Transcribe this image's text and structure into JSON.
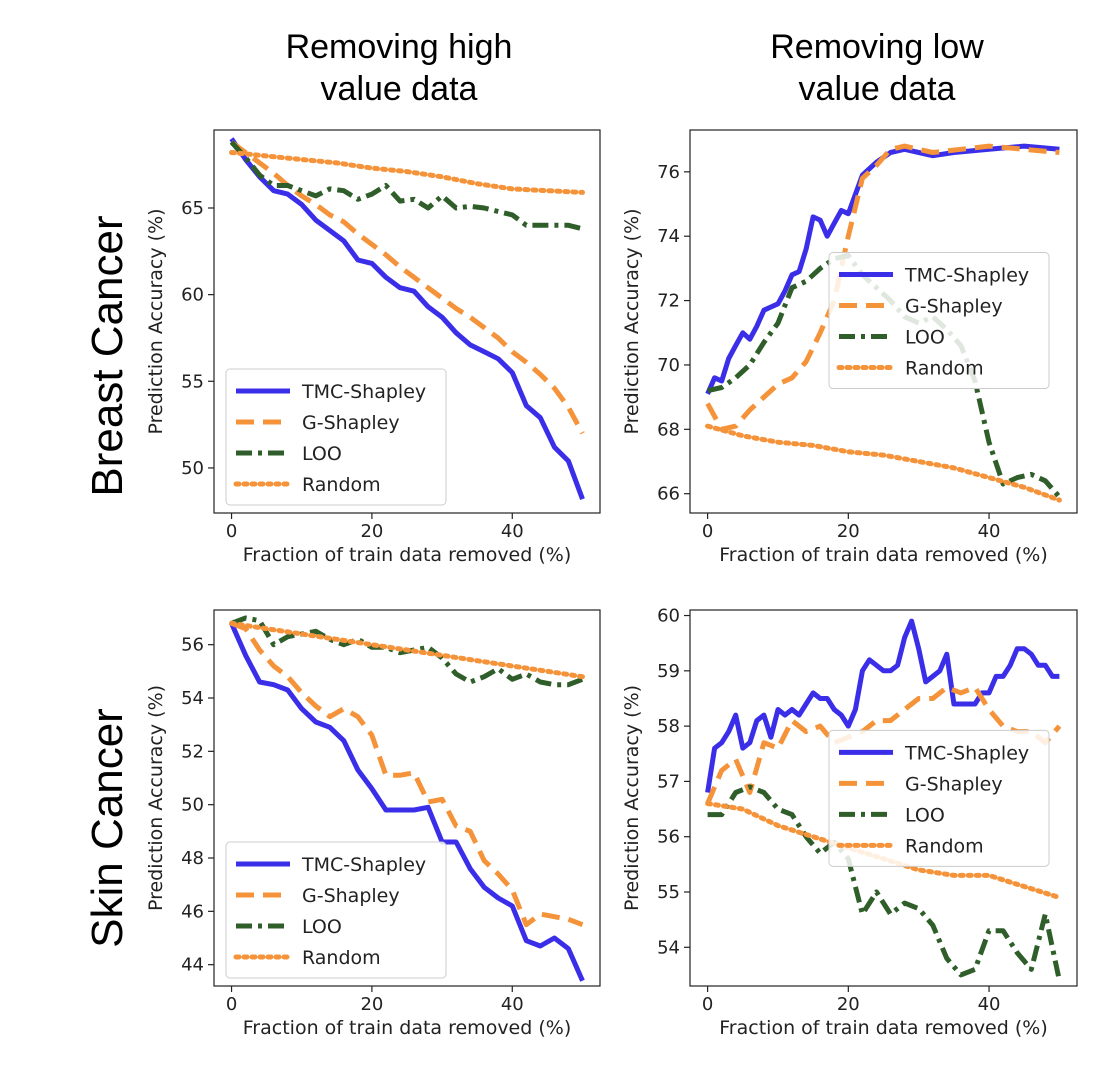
{
  "figure": {
    "column_titles": [
      [
        "Removing high",
        "value data"
      ],
      [
        "Removing low",
        "value data"
      ]
    ],
    "row_titles": [
      "Breast Cancer",
      "Skin Cancer"
    ]
  },
  "chart_data": [
    {
      "type": "line",
      "id": "bc-high",
      "xlabel": "Fraction of train data removed (%)",
      "ylabel": "Prediction Accuracy (%)",
      "xlim": [
        -2.5,
        52.5
      ],
      "ylim": [
        47.4,
        69.5
      ],
      "xticks": [
        0,
        20,
        40
      ],
      "yticks": [
        50,
        55,
        60,
        65
      ],
      "legend": "lower-left",
      "series": [
        {
          "name": "TMC-Shapley",
          "color": "#3a2ee8",
          "style": "solid",
          "x": [
            0,
            2,
            4,
            6,
            8,
            10,
            12,
            14,
            16,
            18,
            20,
            22,
            24,
            26,
            28,
            30,
            32,
            34,
            36,
            38,
            40,
            42,
            44,
            46,
            48,
            50
          ],
          "y": [
            69.0,
            67.8,
            66.8,
            66.0,
            65.8,
            65.2,
            64.3,
            63.7,
            63.1,
            62.0,
            61.8,
            61.0,
            60.4,
            60.2,
            59.3,
            58.7,
            57.8,
            57.1,
            56.7,
            56.3,
            55.5,
            53.6,
            52.9,
            51.2,
            50.4,
            48.2
          ]
        },
        {
          "name": "G-Shapley",
          "color": "#f5933a",
          "style": "dashed",
          "x": [
            0,
            2,
            4,
            6,
            8,
            10,
            12,
            14,
            16,
            18,
            20,
            22,
            24,
            26,
            28,
            30,
            32,
            34,
            36,
            38,
            40,
            42,
            44,
            46,
            48,
            50
          ],
          "y": [
            68.8,
            68.2,
            67.6,
            67.0,
            66.3,
            65.7,
            65.2,
            64.6,
            64.2,
            63.5,
            62.9,
            62.3,
            61.6,
            61.0,
            60.4,
            59.8,
            59.2,
            58.7,
            58.1,
            57.5,
            56.7,
            56.1,
            55.4,
            54.6,
            53.5,
            52.0
          ]
        },
        {
          "name": "LOO",
          "color": "#2f5e2a",
          "style": "dashdot",
          "x": [
            0,
            2,
            4,
            6,
            8,
            10,
            12,
            14,
            16,
            18,
            20,
            22,
            24,
            26,
            28,
            30,
            32,
            34,
            36,
            38,
            40,
            42,
            44,
            46,
            48,
            50
          ],
          "y": [
            68.8,
            67.9,
            66.9,
            66.3,
            66.3,
            66.0,
            65.7,
            66.1,
            66.0,
            65.5,
            65.8,
            66.3,
            65.4,
            65.5,
            65.0,
            65.7,
            65.0,
            65.1,
            65.0,
            64.8,
            64.6,
            64.0,
            64.0,
            64.0,
            64.0,
            63.8
          ]
        },
        {
          "name": "Random",
          "color": "#f5933a",
          "style": "dotted",
          "x": [
            0,
            5,
            10,
            15,
            20,
            25,
            30,
            35,
            40,
            45,
            50
          ],
          "y": [
            68.2,
            68.0,
            67.8,
            67.6,
            67.3,
            67.1,
            66.8,
            66.4,
            66.1,
            66.0,
            65.9
          ]
        }
      ]
    },
    {
      "type": "line",
      "id": "bc-low",
      "xlabel": "Fraction of train data removed (%)",
      "ylabel": "Prediction Accuracy (%)",
      "xlim": [
        -2.5,
        52.5
      ],
      "ylim": [
        65.4,
        77.3
      ],
      "xticks": [
        0,
        20,
        40
      ],
      "yticks": [
        66,
        68,
        70,
        72,
        74,
        76
      ],
      "legend": "center-right",
      "series": [
        {
          "name": "TMC-Shapley",
          "color": "#3a2ee8",
          "style": "solid",
          "x": [
            0,
            1,
            2,
            3,
            4,
            5,
            6,
            7,
            8,
            9,
            10,
            11,
            12,
            13,
            14,
            15,
            16,
            17,
            18,
            19,
            20,
            21,
            22,
            24,
            26,
            28,
            30,
            32,
            35,
            40,
            45,
            50
          ],
          "y": [
            69.1,
            69.6,
            69.5,
            70.2,
            70.6,
            71.0,
            70.8,
            71.2,
            71.7,
            71.8,
            71.9,
            72.3,
            72.8,
            72.9,
            73.6,
            74.6,
            74.5,
            74.0,
            74.4,
            74.8,
            74.7,
            75.3,
            75.9,
            76.3,
            76.6,
            76.7,
            76.6,
            76.5,
            76.6,
            76.7,
            76.8,
            76.7
          ]
        },
        {
          "name": "G-Shapley",
          "color": "#f5933a",
          "style": "dashed",
          "x": [
            0,
            2,
            4,
            6,
            8,
            10,
            12,
            14,
            16,
            18,
            20,
            22,
            24,
            26,
            28,
            32,
            36,
            40,
            45,
            50
          ],
          "y": [
            68.8,
            68.0,
            68.1,
            68.6,
            69.0,
            69.4,
            69.6,
            70.1,
            71.0,
            72.0,
            74.0,
            75.8,
            76.2,
            76.7,
            76.8,
            76.6,
            76.7,
            76.8,
            76.7,
            76.6
          ]
        },
        {
          "name": "LOO",
          "color": "#2f5e2a",
          "style": "dashdot",
          "x": [
            0,
            2,
            4,
            6,
            8,
            10,
            12,
            14,
            16,
            18,
            20,
            22,
            24,
            26,
            28,
            30,
            32,
            34,
            36,
            38,
            40,
            42,
            44,
            46,
            48,
            50
          ],
          "y": [
            69.2,
            69.3,
            69.6,
            70.0,
            70.7,
            71.3,
            72.4,
            72.6,
            73.0,
            73.3,
            73.4,
            72.8,
            72.4,
            72.0,
            71.5,
            71.3,
            71.5,
            71.1,
            70.6,
            69.5,
            67.6,
            66.3,
            66.5,
            66.6,
            66.4,
            65.9
          ]
        },
        {
          "name": "Random",
          "color": "#f5933a",
          "style": "dotted",
          "x": [
            0,
            5,
            10,
            15,
            20,
            25,
            30,
            35,
            40,
            45,
            50
          ],
          "y": [
            68.1,
            67.8,
            67.6,
            67.5,
            67.3,
            67.2,
            67.0,
            66.8,
            66.5,
            66.2,
            65.8
          ]
        }
      ]
    },
    {
      "type": "line",
      "id": "sc-high",
      "xlabel": "Fraction of train data removed (%)",
      "ylabel": "Prediction Accuracy (%)",
      "xlim": [
        -2.5,
        52.5
      ],
      "ylim": [
        43.2,
        57.3
      ],
      "xticks": [
        0,
        20,
        40
      ],
      "yticks": [
        44,
        46,
        48,
        50,
        52,
        54,
        56
      ],
      "legend": "lower-left",
      "series": [
        {
          "name": "TMC-Shapley",
          "color": "#3a2ee8",
          "style": "solid",
          "x": [
            0,
            2,
            4,
            6,
            8,
            10,
            12,
            14,
            16,
            18,
            20,
            22,
            24,
            26,
            28,
            30,
            32,
            34,
            36,
            38,
            40,
            42,
            44,
            46,
            48,
            50
          ],
          "y": [
            56.8,
            55.6,
            54.6,
            54.5,
            54.3,
            53.6,
            53.1,
            52.9,
            52.4,
            51.3,
            50.6,
            49.8,
            49.8,
            49.8,
            49.9,
            48.6,
            48.6,
            47.6,
            46.9,
            46.5,
            46.2,
            44.9,
            44.7,
            45.0,
            44.6,
            43.4
          ]
        },
        {
          "name": "G-Shapley",
          "color": "#f5933a",
          "style": "dashed",
          "x": [
            0,
            2,
            4,
            6,
            8,
            10,
            12,
            14,
            16,
            18,
            20,
            22,
            24,
            26,
            28,
            30,
            32,
            34,
            36,
            38,
            40,
            42,
            44,
            46,
            48,
            50
          ],
          "y": [
            56.8,
            56.6,
            55.8,
            55.2,
            54.8,
            54.2,
            53.7,
            53.3,
            53.6,
            53.3,
            52.6,
            51.1,
            51.1,
            51.2,
            50.1,
            50.2,
            49.2,
            49.0,
            47.9,
            47.4,
            46.8,
            45.5,
            45.9,
            45.8,
            45.7,
            45.5
          ]
        },
        {
          "name": "LOO",
          "color": "#2f5e2a",
          "style": "dashdot",
          "x": [
            0,
            2,
            4,
            6,
            8,
            10,
            12,
            14,
            16,
            18,
            20,
            22,
            24,
            26,
            28,
            30,
            32,
            34,
            36,
            38,
            40,
            42,
            44,
            46,
            48,
            50
          ],
          "y": [
            56.8,
            57.0,
            56.9,
            56.0,
            56.3,
            56.4,
            56.5,
            56.2,
            56.0,
            56.2,
            55.9,
            55.9,
            55.7,
            55.8,
            55.9,
            55.5,
            54.9,
            54.6,
            54.8,
            55.1,
            54.7,
            54.9,
            54.6,
            54.5,
            54.5,
            54.7
          ]
        },
        {
          "name": "Random",
          "color": "#f5933a",
          "style": "dotted",
          "x": [
            0,
            5,
            10,
            15,
            20,
            25,
            30,
            35,
            40,
            45,
            50
          ],
          "y": [
            56.8,
            56.6,
            56.4,
            56.2,
            56.0,
            55.8,
            55.6,
            55.4,
            55.2,
            55.0,
            54.8
          ]
        }
      ]
    },
    {
      "type": "line",
      "id": "sc-low",
      "xlabel": "Fraction of train data removed (%)",
      "ylabel": "Prediction Accuracy (%)",
      "xlim": [
        -2.5,
        52.5
      ],
      "ylim": [
        53.3,
        60.1
      ],
      "xticks": [
        0,
        20,
        40
      ],
      "yticks": [
        54,
        55,
        56,
        57,
        58,
        59,
        60
      ],
      "legend": "center-right",
      "series": [
        {
          "name": "TMC-Shapley",
          "color": "#3a2ee8",
          "style": "solid",
          "x": [
            0,
            1,
            2,
            3,
            4,
            5,
            6,
            7,
            8,
            9,
            10,
            11,
            12,
            13,
            14,
            15,
            16,
            17,
            18,
            19,
            20,
            21,
            22,
            23,
            24,
            25,
            26,
            27,
            28,
            29,
            30,
            31,
            32,
            33,
            34,
            35,
            36,
            37,
            38,
            39,
            40,
            41,
            42,
            43,
            44,
            45,
            46,
            47,
            48,
            49,
            50
          ],
          "y": [
            56.8,
            57.6,
            57.7,
            57.9,
            58.2,
            57.6,
            57.7,
            58.1,
            58.2,
            57.8,
            58.3,
            58.2,
            58.3,
            58.2,
            58.4,
            58.6,
            58.5,
            58.5,
            58.3,
            58.2,
            58.0,
            58.3,
            59.0,
            59.2,
            59.1,
            59.0,
            59.0,
            59.1,
            59.6,
            59.9,
            59.4,
            58.8,
            58.9,
            59.0,
            59.3,
            58.4,
            58.4,
            58.4,
            58.4,
            58.6,
            58.6,
            58.9,
            58.9,
            59.1,
            59.4,
            59.4,
            59.3,
            59.1,
            59.1,
            58.9,
            58.9
          ]
        },
        {
          "name": "G-Shapley",
          "color": "#f5933a",
          "style": "dashed",
          "x": [
            0,
            2,
            4,
            6,
            8,
            10,
            12,
            14,
            16,
            18,
            20,
            22,
            24,
            26,
            28,
            30,
            32,
            34,
            36,
            38,
            40,
            42,
            44,
            46,
            48,
            50
          ],
          "y": [
            56.6,
            57.2,
            57.4,
            56.8,
            57.7,
            57.6,
            58.1,
            57.9,
            58.0,
            57.7,
            57.8,
            57.9,
            58.1,
            58.1,
            58.3,
            58.5,
            58.5,
            58.7,
            58.6,
            58.7,
            58.3,
            58.0,
            57.9,
            57.9,
            57.7,
            58.0
          ]
        },
        {
          "name": "LOO",
          "color": "#2f5e2a",
          "style": "dashdot",
          "x": [
            0,
            2,
            4,
            6,
            8,
            10,
            12,
            14,
            16,
            18,
            20,
            22,
            24,
            26,
            28,
            30,
            32,
            34,
            36,
            38,
            40,
            42,
            44,
            46,
            48,
            50
          ],
          "y": [
            56.4,
            56.4,
            56.8,
            56.9,
            56.8,
            56.5,
            56.4,
            56.0,
            55.7,
            55.9,
            55.6,
            54.6,
            55.0,
            54.6,
            54.8,
            54.7,
            54.4,
            53.8,
            53.5,
            53.6,
            54.3,
            54.3,
            53.9,
            53.6,
            54.6,
            53.4
          ]
        },
        {
          "name": "Random",
          "color": "#f5933a",
          "style": "dotted",
          "x": [
            0,
            5,
            10,
            15,
            20,
            25,
            30,
            35,
            40,
            45,
            50
          ],
          "y": [
            56.6,
            56.5,
            56.2,
            56.0,
            55.8,
            55.6,
            55.4,
            55.3,
            55.3,
            55.1,
            54.9
          ]
        }
      ]
    }
  ]
}
